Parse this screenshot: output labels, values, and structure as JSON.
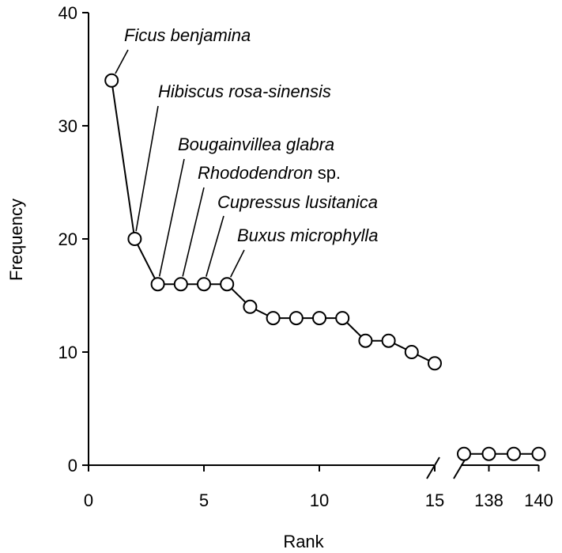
{
  "chart_data": {
    "type": "line",
    "xlabel": "Rank",
    "ylabel": "Frequency",
    "ylim": [
      0,
      40
    ],
    "yticks": [
      0,
      10,
      20,
      30,
      40
    ],
    "xticks_main": [
      0,
      5,
      10,
      15
    ],
    "xticks_tail": [
      138,
      140
    ],
    "axis_break": "x between 15 and 137",
    "main_segment": {
      "x": [
        1,
        2,
        3,
        4,
        5,
        6,
        7,
        8,
        9,
        10,
        11,
        12,
        13,
        14,
        15
      ],
      "y": [
        34,
        20,
        16,
        16,
        16,
        16,
        14,
        13,
        13,
        13,
        13,
        11,
        11,
        10,
        9
      ]
    },
    "tail_segment": {
      "x": [
        137,
        138,
        139,
        140
      ],
      "y": [
        1,
        1,
        1,
        1
      ]
    },
    "annotations": [
      {
        "rank": 1,
        "name": "Ficus benjamina",
        "suffix": ""
      },
      {
        "rank": 2,
        "name": "Hibiscus rosa-sinensis",
        "suffix": ""
      },
      {
        "rank": 3,
        "name": "Bougainvillea glabra",
        "suffix": ""
      },
      {
        "rank": 4,
        "name": "Rhododendron",
        "suffix": " sp."
      },
      {
        "rank": 5,
        "name": "Cupressus lusitanica",
        "suffix": ""
      },
      {
        "rank": 6,
        "name": "Buxus microphylla",
        "suffix": ""
      }
    ]
  }
}
